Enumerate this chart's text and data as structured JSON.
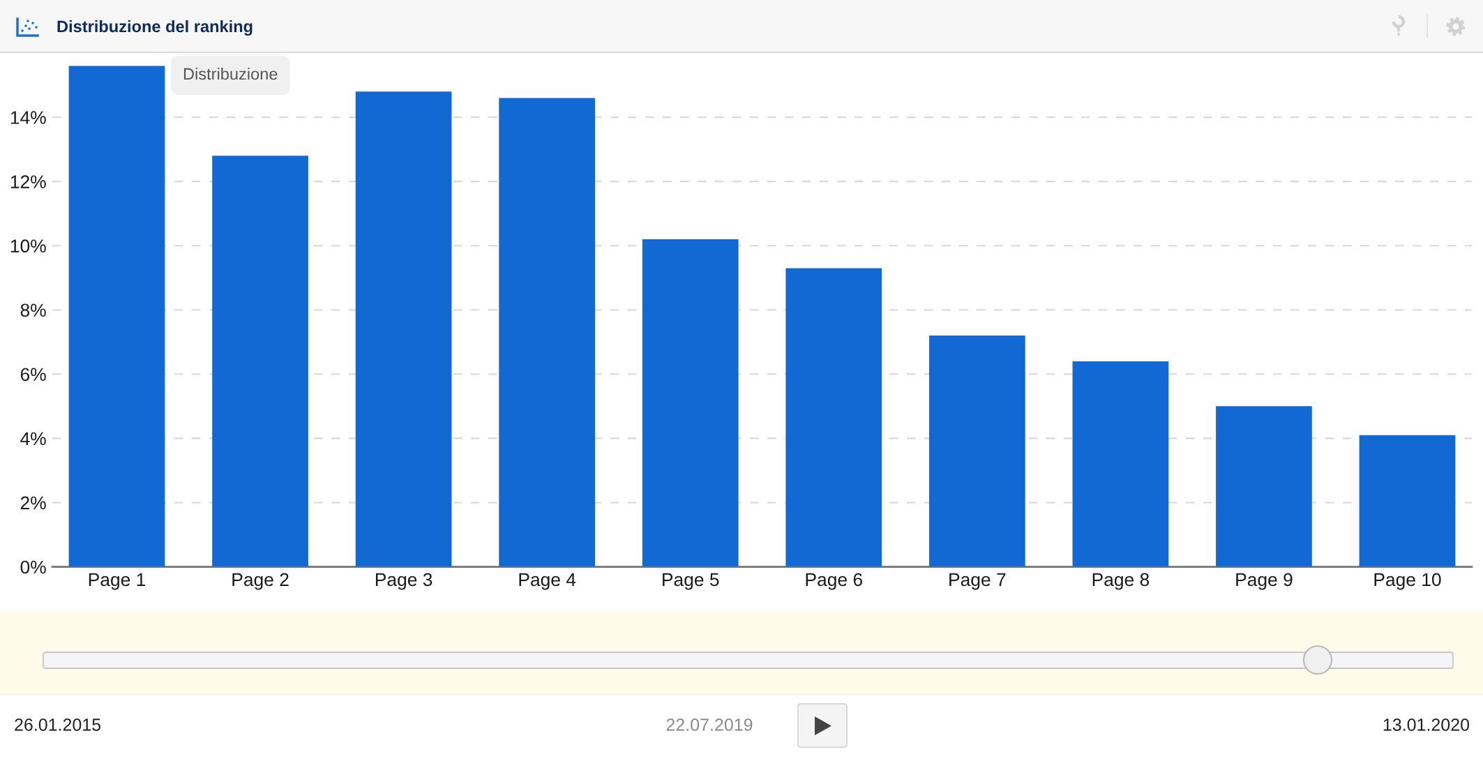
{
  "chart_data": {
    "type": "bar",
    "title": "Distribuzione del ranking",
    "categories": [
      "Page 1",
      "Page 2",
      "Page 3",
      "Page 4",
      "Page 5",
      "Page 6",
      "Page 7",
      "Page 8",
      "Page 9",
      "Page 10"
    ],
    "values": [
      15.6,
      12.8,
      14.8,
      14.6,
      10.2,
      9.3,
      7.2,
      6.4,
      5.0,
      4.1
    ],
    "color": "#1369d4",
    "ylim": [
      0,
      16
    ],
    "yticks": [
      {
        "value": 0,
        "label": "0%"
      },
      {
        "value": 2,
        "label": "2%"
      },
      {
        "value": 4,
        "label": "4%"
      },
      {
        "value": 6,
        "label": "6%"
      },
      {
        "value": 8,
        "label": "8%"
      },
      {
        "value": 10,
        "label": "10%"
      },
      {
        "value": 12,
        "label": "12%"
      },
      {
        "value": 14,
        "label": "14%"
      }
    ],
    "grid": "y",
    "annotations": [
      "Distribuzione",
      "26.01.2015",
      "22.07.2019",
      "13.01.2020"
    ]
  }
}
